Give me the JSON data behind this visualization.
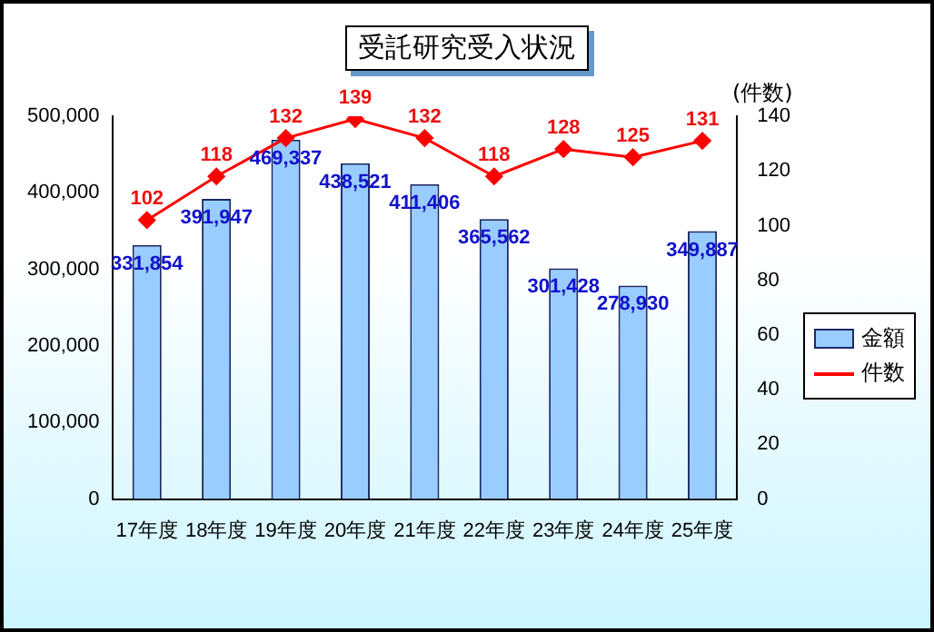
{
  "chart_data": {
    "type": "bar",
    "title": "受託研究受入状況",
    "y2label": "(件数)",
    "categories": [
      "17年度",
      "18年度",
      "19年度",
      "20年度",
      "21年度",
      "22年度",
      "23年度",
      "24年度",
      "25年度"
    ],
    "series": [
      {
        "name": "金額",
        "color": "#99ccff",
        "values": [
          331854,
          391947,
          469337,
          438521,
          411406,
          365562,
          301428,
          278930,
          349887
        ],
        "value_labels": [
          "331,854",
          "391,947",
          "469,337",
          "438,521",
          "411,406",
          "365,562",
          "301,428",
          "278,930",
          "349,887"
        ]
      },
      {
        "name": "件数",
        "type": "line",
        "axis": "y2",
        "color": "#ff0000",
        "marker": "diamond",
        "values": [
          102,
          118,
          132,
          139,
          132,
          118,
          128,
          125,
          131
        ],
        "value_labels": [
          "102",
          "118",
          "132",
          "139",
          "132",
          "118",
          "128",
          "125",
          "131"
        ]
      }
    ],
    "ylim": [
      0,
      500000
    ],
    "yticks": [
      {
        "value": 0,
        "label": "0"
      },
      {
        "value": 100000,
        "label": "100,000"
      },
      {
        "value": 200000,
        "label": "200,000"
      },
      {
        "value": 300000,
        "label": "300,000"
      },
      {
        "value": 400000,
        "label": "400,000"
      },
      {
        "value": 500000,
        "label": "500,000"
      }
    ],
    "y2lim": [
      0,
      140
    ],
    "y2ticks": [
      0,
      20,
      40,
      60,
      80,
      100,
      120,
      140
    ],
    "grid": false,
    "legend": "right"
  }
}
